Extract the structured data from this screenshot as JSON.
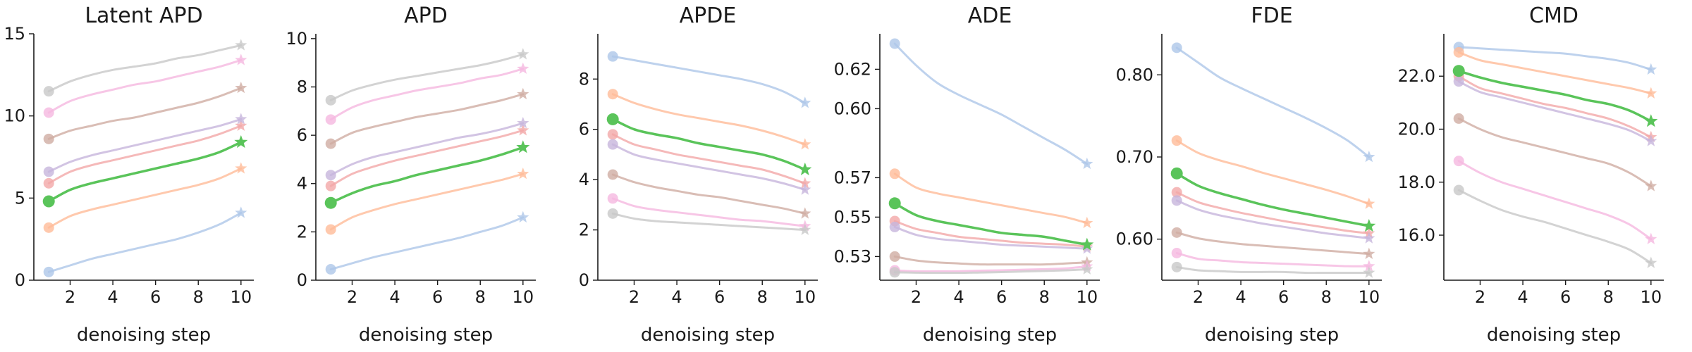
{
  "chart_data": [
    {
      "type": "line",
      "title": "Latent APD",
      "xlabel": "denoising step",
      "ylabel": "",
      "xlim": [
        0.3,
        10.6
      ],
      "ylim": [
        0,
        15
      ],
      "xticks": [
        2,
        4,
        6,
        8,
        10
      ],
      "yticks": [
        0,
        5,
        10,
        15
      ],
      "ytick_labels": [
        "0",
        "5",
        "10",
        "15"
      ],
      "x": [
        1,
        2,
        3,
        4,
        5,
        6,
        7,
        8,
        9,
        10
      ],
      "series": [
        {
          "values": [
            0.5,
            0.9,
            1.3,
            1.6,
            1.9,
            2.2,
            2.5,
            2.9,
            3.4,
            4.1
          ],
          "color": "#aec7e8"
        },
        {
          "values": [
            3.2,
            3.9,
            4.3,
            4.6,
            4.9,
            5.2,
            5.5,
            5.8,
            6.2,
            6.8
          ],
          "color": "#ffbb98"
        },
        {
          "values": [
            4.8,
            5.5,
            5.9,
            6.2,
            6.5,
            6.8,
            7.1,
            7.4,
            7.8,
            8.4
          ],
          "color": "#5ac45a"
        },
        {
          "values": [
            5.9,
            6.6,
            7.0,
            7.3,
            7.6,
            7.9,
            8.2,
            8.5,
            8.9,
            9.4
          ],
          "color": "#f2a7a7"
        },
        {
          "values": [
            6.6,
            7.2,
            7.6,
            7.9,
            8.2,
            8.5,
            8.8,
            9.1,
            9.4,
            9.8
          ],
          "color": "#c7b5dc"
        },
        {
          "values": [
            8.6,
            9.1,
            9.4,
            9.7,
            9.9,
            10.2,
            10.5,
            10.8,
            11.2,
            11.7
          ],
          "color": "#cfada3"
        },
        {
          "values": [
            10.2,
            10.9,
            11.3,
            11.6,
            11.9,
            12.1,
            12.4,
            12.7,
            13.0,
            13.4
          ],
          "color": "#f5b8e0"
        },
        {
          "values": [
            11.5,
            12.1,
            12.5,
            12.8,
            13.0,
            13.2,
            13.5,
            13.7,
            14.0,
            14.3
          ],
          "color": "#c8c8c8"
        }
      ]
    },
    {
      "type": "line",
      "title": "APD",
      "xlabel": "denoising step",
      "ylabel": "",
      "xlim": [
        0.3,
        10.6
      ],
      "ylim": [
        0,
        10.2
      ],
      "xticks": [
        2,
        4,
        6,
        8,
        10
      ],
      "yticks": [
        0,
        2,
        4,
        6,
        8,
        10
      ],
      "ytick_labels": [
        "0",
        "2",
        "4",
        "6",
        "8",
        "10"
      ],
      "x": [
        1,
        2,
        3,
        4,
        5,
        6,
        7,
        8,
        9,
        10
      ],
      "series": [
        {
          "values": [
            0.45,
            0.7,
            0.95,
            1.15,
            1.35,
            1.55,
            1.75,
            2.0,
            2.25,
            2.6
          ],
          "color": "#aec7e8"
        },
        {
          "values": [
            2.1,
            2.6,
            2.9,
            3.15,
            3.35,
            3.55,
            3.75,
            3.95,
            4.15,
            4.4
          ],
          "color": "#ffbb98"
        },
        {
          "values": [
            3.2,
            3.6,
            3.9,
            4.1,
            4.35,
            4.55,
            4.75,
            4.95,
            5.2,
            5.5
          ],
          "color": "#5ac45a"
        },
        {
          "values": [
            3.9,
            4.4,
            4.7,
            4.95,
            5.15,
            5.35,
            5.55,
            5.75,
            5.95,
            6.2
          ],
          "color": "#f2a7a7"
        },
        {
          "values": [
            4.35,
            4.8,
            5.1,
            5.3,
            5.5,
            5.7,
            5.9,
            6.05,
            6.25,
            6.5
          ],
          "color": "#c7b5dc"
        },
        {
          "values": [
            5.65,
            6.1,
            6.35,
            6.55,
            6.75,
            6.9,
            7.05,
            7.25,
            7.45,
            7.7
          ],
          "color": "#cfada3"
        },
        {
          "values": [
            6.65,
            7.15,
            7.45,
            7.65,
            7.85,
            8.0,
            8.15,
            8.35,
            8.5,
            8.75
          ],
          "color": "#f5b8e0"
        },
        {
          "values": [
            7.45,
            7.85,
            8.1,
            8.3,
            8.45,
            8.6,
            8.75,
            8.9,
            9.1,
            9.35
          ],
          "color": "#c8c8c8"
        }
      ]
    },
    {
      "type": "line",
      "title": "APDE",
      "xlabel": "denoising step",
      "ylabel": "",
      "xlim": [
        0.3,
        10.6
      ],
      "ylim": [
        0,
        9.8
      ],
      "xticks": [
        2,
        4,
        6,
        8,
        10
      ],
      "yticks": [
        0,
        2,
        4,
        6,
        8
      ],
      "ytick_labels": [
        "0",
        "2",
        "4",
        "6",
        "8"
      ],
      "x": [
        1,
        2,
        3,
        4,
        5,
        6,
        7,
        8,
        9,
        10
      ],
      "series": [
        {
          "values": [
            8.9,
            8.75,
            8.6,
            8.45,
            8.3,
            8.15,
            8.0,
            7.8,
            7.5,
            7.05
          ],
          "color": "#aec7e8"
        },
        {
          "values": [
            7.4,
            7.05,
            6.8,
            6.6,
            6.45,
            6.3,
            6.15,
            5.95,
            5.7,
            5.4
          ],
          "color": "#ffbb98"
        },
        {
          "values": [
            6.4,
            6.0,
            5.8,
            5.65,
            5.45,
            5.3,
            5.15,
            5.0,
            4.75,
            4.4
          ],
          "color": "#5ac45a"
        },
        {
          "values": [
            5.8,
            5.4,
            5.2,
            5.0,
            4.85,
            4.7,
            4.55,
            4.4,
            4.15,
            3.85
          ],
          "color": "#f2a7a7"
        },
        {
          "values": [
            5.4,
            5.0,
            4.8,
            4.65,
            4.5,
            4.35,
            4.2,
            4.05,
            3.85,
            3.6
          ],
          "color": "#c7b5dc"
        },
        {
          "values": [
            4.2,
            3.9,
            3.7,
            3.55,
            3.4,
            3.3,
            3.15,
            3.0,
            2.85,
            2.65
          ],
          "color": "#cfada3"
        },
        {
          "values": [
            3.25,
            2.95,
            2.8,
            2.7,
            2.6,
            2.5,
            2.4,
            2.35,
            2.25,
            2.15
          ],
          "color": "#f5b8e0"
        },
        {
          "values": [
            2.65,
            2.45,
            2.35,
            2.3,
            2.25,
            2.2,
            2.15,
            2.1,
            2.05,
            2.0
          ],
          "color": "#c8c8c8"
        }
      ]
    },
    {
      "type": "line",
      "title": "ADE",
      "xlabel": "denoising step",
      "ylabel": "",
      "xlim": [
        0.3,
        10.6
      ],
      "ylim": [
        0.513,
        0.638
      ],
      "xticks": [
        2,
        4,
        6,
        8,
        10
      ],
      "yticks": [
        0.525,
        0.545,
        0.565,
        0.6,
        0.62
      ],
      "ytick_labels": [
        "0.53",
        "0.55",
        "0.57",
        "0.60",
        "0.62"
      ],
      "x": [
        1,
        2,
        3,
        4,
        5,
        6,
        7,
        8,
        9,
        10
      ],
      "series": [
        {
          "values": [
            0.633,
            0.622,
            0.613,
            0.607,
            0.602,
            0.597,
            0.591,
            0.585,
            0.579,
            0.572
          ],
          "color": "#aec7e8"
        },
        {
          "values": [
            0.567,
            0.56,
            0.557,
            0.555,
            0.553,
            0.551,
            0.549,
            0.547,
            0.545,
            0.542
          ],
          "color": "#ffbb98"
        },
        {
          "values": [
            0.552,
            0.546,
            0.543,
            0.541,
            0.539,
            0.537,
            0.536,
            0.535,
            0.533,
            0.531
          ],
          "color": "#5ac45a"
        },
        {
          "values": [
            0.543,
            0.539,
            0.537,
            0.535,
            0.534,
            0.533,
            0.532,
            0.5315,
            0.531,
            0.53
          ],
          "color": "#f2a7a7"
        },
        {
          "values": [
            0.54,
            0.536,
            0.534,
            0.533,
            0.532,
            0.531,
            0.5305,
            0.53,
            0.5295,
            0.529
          ],
          "color": "#c7b5dc"
        },
        {
          "values": [
            0.525,
            0.523,
            0.522,
            0.5215,
            0.521,
            0.521,
            0.521,
            0.521,
            0.5215,
            0.522
          ],
          "color": "#cfada3"
        },
        {
          "values": [
            0.518,
            0.5175,
            0.5175,
            0.5175,
            0.5178,
            0.518,
            0.5183,
            0.5186,
            0.519,
            0.52
          ],
          "color": "#f5b8e0"
        },
        {
          "values": [
            0.517,
            0.5168,
            0.5167,
            0.5167,
            0.5169,
            0.5171,
            0.5174,
            0.5177,
            0.518,
            0.5185
          ],
          "color": "#c8c8c8"
        }
      ]
    },
    {
      "type": "line",
      "title": "FDE",
      "xlabel": "denoising step",
      "ylabel": "",
      "xlim": [
        0.3,
        10.6
      ],
      "ylim": [
        0.55,
        0.85
      ],
      "xticks": [
        2,
        4,
        6,
        8,
        10
      ],
      "yticks": [
        0.6,
        0.7,
        0.8
      ],
      "ytick_labels": [
        "0.60",
        "0.70",
        "0.80"
      ],
      "x": [
        1,
        2,
        3,
        4,
        5,
        6,
        7,
        8,
        9,
        10
      ],
      "series": [
        {
          "values": [
            0.833,
            0.815,
            0.797,
            0.784,
            0.772,
            0.76,
            0.748,
            0.735,
            0.72,
            0.7
          ],
          "color": "#aec7e8"
        },
        {
          "values": [
            0.72,
            0.705,
            0.696,
            0.689,
            0.681,
            0.674,
            0.667,
            0.66,
            0.652,
            0.643
          ],
          "color": "#ffbb98"
        },
        {
          "values": [
            0.68,
            0.665,
            0.656,
            0.649,
            0.642,
            0.636,
            0.631,
            0.626,
            0.621,
            0.616
          ],
          "color": "#5ac45a"
        },
        {
          "values": [
            0.657,
            0.645,
            0.638,
            0.632,
            0.627,
            0.622,
            0.618,
            0.614,
            0.61,
            0.607
          ],
          "color": "#f2a7a7"
        },
        {
          "values": [
            0.647,
            0.636,
            0.629,
            0.624,
            0.619,
            0.615,
            0.611,
            0.607,
            0.604,
            0.601
          ],
          "color": "#c7b5dc"
        },
        {
          "values": [
            0.608,
            0.601,
            0.597,
            0.594,
            0.592,
            0.59,
            0.588,
            0.586,
            0.584,
            0.582
          ],
          "color": "#cfada3"
        },
        {
          "values": [
            0.583,
            0.576,
            0.574,
            0.572,
            0.571,
            0.57,
            0.569,
            0.568,
            0.567,
            0.567
          ],
          "color": "#f5b8e0"
        },
        {
          "values": [
            0.566,
            0.562,
            0.561,
            0.56,
            0.56,
            0.56,
            0.559,
            0.559,
            0.559,
            0.559
          ],
          "color": "#c8c8c8"
        }
      ]
    },
    {
      "type": "line",
      "title": "CMD",
      "xlabel": "denoising step",
      "ylabel": "",
      "xlim": [
        0.3,
        10.6
      ],
      "ylim": [
        14.3,
        23.6
      ],
      "xticks": [
        2,
        4,
        6,
        8,
        10
      ],
      "yticks": [
        16,
        18,
        20,
        22
      ],
      "ytick_labels": [
        "16.0",
        "18.0",
        "20.0",
        "22.0"
      ],
      "x": [
        1,
        2,
        3,
        4,
        5,
        6,
        7,
        8,
        9,
        10
      ],
      "series": [
        {
          "values": [
            23.1,
            23.05,
            23.0,
            22.95,
            22.9,
            22.85,
            22.75,
            22.65,
            22.5,
            22.25
          ],
          "color": "#aec7e8"
        },
        {
          "values": [
            22.9,
            22.6,
            22.45,
            22.3,
            22.15,
            22.0,
            21.85,
            21.7,
            21.55,
            21.35
          ],
          "color": "#ffbb98"
        },
        {
          "values": [
            22.2,
            21.95,
            21.75,
            21.6,
            21.45,
            21.3,
            21.1,
            20.95,
            20.7,
            20.3
          ],
          "color": "#5ac45a"
        },
        {
          "values": [
            22.0,
            21.55,
            21.35,
            21.15,
            20.95,
            20.8,
            20.6,
            20.4,
            20.1,
            19.7
          ],
          "color": "#f2a7a7"
        },
        {
          "values": [
            21.8,
            21.4,
            21.2,
            21.0,
            20.8,
            20.6,
            20.4,
            20.2,
            19.95,
            19.55
          ],
          "color": "#c7b5dc"
        },
        {
          "values": [
            20.4,
            20.0,
            19.7,
            19.5,
            19.3,
            19.1,
            18.9,
            18.7,
            18.35,
            17.85
          ],
          "color": "#cfada3"
        },
        {
          "values": [
            18.8,
            18.35,
            18.0,
            17.75,
            17.5,
            17.25,
            17.0,
            16.75,
            16.4,
            15.85
          ],
          "color": "#f5b8e0"
        },
        {
          "values": [
            17.7,
            17.3,
            16.95,
            16.7,
            16.5,
            16.25,
            16.0,
            15.75,
            15.45,
            14.95
          ],
          "color": "#c8c8c8"
        }
      ]
    }
  ]
}
